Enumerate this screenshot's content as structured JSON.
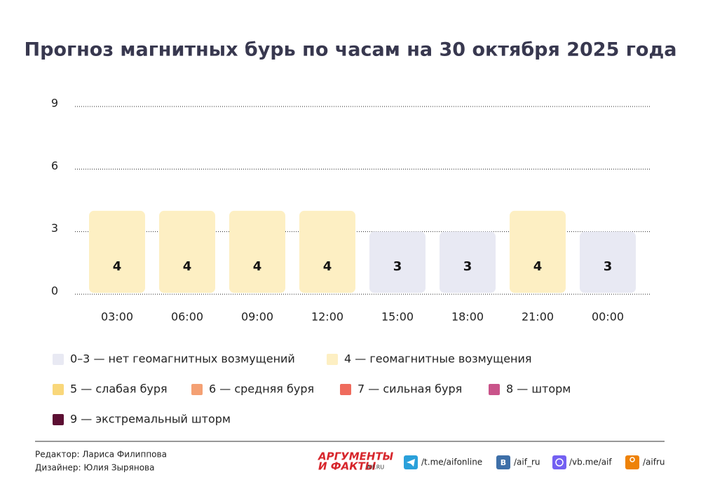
{
  "chart_data": {
    "type": "bar",
    "title": "Прогноз магнитных бурь по часам на 30 октября 2025 года",
    "categories": [
      "03:00",
      "06:00",
      "09:00",
      "12:00",
      "15:00",
      "18:00",
      "21:00",
      "00:00"
    ],
    "values": [
      4,
      4,
      4,
      4,
      3,
      3,
      4,
      3
    ],
    "colors": [
      "#fdefc3",
      "#fdefc3",
      "#fdefc3",
      "#fdefc3",
      "#e8e9f3",
      "#e8e9f3",
      "#fdefc3",
      "#e8e9f3"
    ],
    "ylim": [
      0,
      9
    ],
    "yticks": [
      0,
      3,
      6,
      9
    ],
    "grid": true,
    "legend": [
      {
        "label": "0–3 — нет геомагнитных возмущений",
        "color": "#e8e9f3"
      },
      {
        "label": "4 — геомагнитные возмущения",
        "color": "#fdefc3"
      },
      {
        "label": "5 — слабая буря",
        "color": "#f9d77a"
      },
      {
        "label": "6 — средняя буря",
        "color": "#f4a073"
      },
      {
        "label": "7 — сильная буря",
        "color": "#ef6b5d"
      },
      {
        "label": "8 — шторм",
        "color": "#c9548a"
      },
      {
        "label": "9 — экстремальный шторм",
        "color": "#5c0f33"
      }
    ]
  },
  "footer": {
    "editor": "Редактор: Лариса Филиппова",
    "designer": "Дизайнер: Юлия Зырянова",
    "logo": {
      "line1": "АРГУМЕНТЫ",
      "line2": "И ФАКТЫ",
      "site": "AIF.RU"
    },
    "links": [
      "/t.me/aifonline",
      "/aif_ru",
      "/vb.me/aif",
      "/aifru"
    ]
  }
}
